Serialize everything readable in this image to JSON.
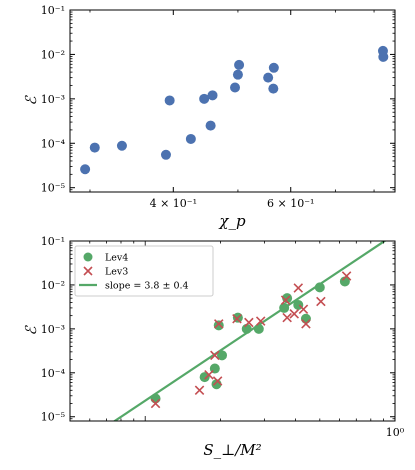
{
  "colors": {
    "lev4": "#4C72B0",
    "lev4_bottom": "#55A868",
    "lev3": "#C44E52",
    "fit": "#55A868",
    "axes": "#000000"
  },
  "chart_data": [
    {
      "type": "scatter",
      "xscale": "log",
      "yscale": "log",
      "xlim": [
        0.28,
        0.86
      ],
      "ylim": [
        8e-06,
        0.1
      ],
      "xlabel": "χ_p",
      "ylabel": "ℰ",
      "xticks": [
        {
          "value": 0.4,
          "label": "4 × 10⁻¹"
        },
        {
          "value": 0.6,
          "label": "6 × 10⁻¹"
        }
      ],
      "yticks": [
        {
          "value": 1e-05,
          "label": "10⁻⁵"
        },
        {
          "value": 0.0001,
          "label": "10⁻⁴"
        },
        {
          "value": 0.001,
          "label": "10⁻³"
        },
        {
          "value": 0.01,
          "label": "10⁻²"
        },
        {
          "value": 0.1,
          "label": "10⁻¹"
        }
      ],
      "series": [
        {
          "marker": "circle",
          "color_key": "lev4",
          "points": [
            {
              "x": 0.295,
              "y": 2.6e-05
            },
            {
              "x": 0.305,
              "y": 8e-05
            },
            {
              "x": 0.335,
              "y": 8.8e-05
            },
            {
              "x": 0.39,
              "y": 5.5e-05
            },
            {
              "x": 0.395,
              "y": 0.00092
            },
            {
              "x": 0.425,
              "y": 0.000125
            },
            {
              "x": 0.445,
              "y": 0.001
            },
            {
              "x": 0.455,
              "y": 0.00025
            },
            {
              "x": 0.458,
              "y": 0.0012
            },
            {
              "x": 0.495,
              "y": 0.0018
            },
            {
              "x": 0.5,
              "y": 0.0035
            },
            {
              "x": 0.502,
              "y": 0.0058
            },
            {
              "x": 0.555,
              "y": 0.003
            },
            {
              "x": 0.565,
              "y": 0.0017
            },
            {
              "x": 0.566,
              "y": 0.005
            },
            {
              "x": 0.825,
              "y": 0.012
            },
            {
              "x": 0.826,
              "y": 0.0088
            }
          ]
        }
      ]
    },
    {
      "type": "scatter",
      "xscale": "log",
      "yscale": "log",
      "xlim": [
        0.05,
        1.0
      ],
      "ylim": [
        8e-06,
        0.1
      ],
      "xlabel": "S_⊥/M²",
      "ylabel": "ℰ",
      "xticks": [
        {
          "value": 1.0,
          "label": "10⁰"
        }
      ],
      "yticks": [
        {
          "value": 1e-05,
          "label": "10⁻⁵"
        },
        {
          "value": 0.0001,
          "label": "10⁻⁴"
        },
        {
          "value": 0.001,
          "label": "10⁻³"
        },
        {
          "value": 0.01,
          "label": "10⁻²"
        },
        {
          "value": 0.1,
          "label": "10⁻¹"
        }
      ],
      "legend_position": "top-left",
      "series": [
        {
          "name": "Lev4",
          "marker": "circle",
          "color_key": "lev4_bottom",
          "points": [
            {
              "x": 0.11,
              "y": 2.6e-05
            },
            {
              "x": 0.173,
              "y": 8e-05
            },
            {
              "x": 0.19,
              "y": 0.000125
            },
            {
              "x": 0.193,
              "y": 5.5e-05
            },
            {
              "x": 0.197,
              "y": 0.0012
            },
            {
              "x": 0.203,
              "y": 0.00025
            },
            {
              "x": 0.235,
              "y": 0.0018
            },
            {
              "x": 0.255,
              "y": 0.001
            },
            {
              "x": 0.285,
              "y": 0.001
            },
            {
              "x": 0.36,
              "y": 0.003
            },
            {
              "x": 0.37,
              "y": 0.005
            },
            {
              "x": 0.41,
              "y": 0.0035
            },
            {
              "x": 0.44,
              "y": 0.0017
            },
            {
              "x": 0.5,
              "y": 0.0088
            },
            {
              "x": 0.63,
              "y": 0.012
            }
          ]
        },
        {
          "name": "Lev3",
          "marker": "cross",
          "color_key": "lev3",
          "points": [
            {
              "x": 0.11,
              "y": 2e-05
            },
            {
              "x": 0.165,
              "y": 4e-05
            },
            {
              "x": 0.18,
              "y": 9e-05
            },
            {
              "x": 0.19,
              "y": 0.00025
            },
            {
              "x": 0.195,
              "y": 6.5e-05
            },
            {
              "x": 0.197,
              "y": 0.0013
            },
            {
              "x": 0.233,
              "y": 0.0017
            },
            {
              "x": 0.26,
              "y": 0.0014
            },
            {
              "x": 0.29,
              "y": 0.0015
            },
            {
              "x": 0.365,
              "y": 0.0045
            },
            {
              "x": 0.37,
              "y": 0.0018
            },
            {
              "x": 0.395,
              "y": 0.0022
            },
            {
              "x": 0.41,
              "y": 0.0085
            },
            {
              "x": 0.43,
              "y": 0.0028
            },
            {
              "x": 0.44,
              "y": 0.0013
            },
            {
              "x": 0.505,
              "y": 0.0042
            },
            {
              "x": 0.64,
              "y": 0.016
            }
          ]
        },
        {
          "name": "slope = 3.8 ± 0.4",
          "type": "line",
          "color_key": "fit",
          "slope": 3.8,
          "points": [
            {
              "x": 0.075,
              "y": 7.8e-06
            },
            {
              "x": 0.78,
              "y": 0.056
            }
          ]
        }
      ]
    }
  ]
}
